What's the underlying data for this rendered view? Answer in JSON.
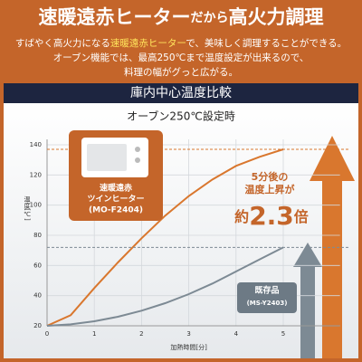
{
  "header": {
    "title_parts": [
      "速暖遠赤ヒーター",
      "だから",
      "高火力調理"
    ],
    "line1": [
      "すばやく高火力になる",
      "速暖遠赤ヒーター",
      "で、美味しく調理することができる。"
    ],
    "line2": "オーブン機能では、最高250℃まで温度設定が出来るので、",
    "line3": "料理の幅がグっと広がる。"
  },
  "section_title": "庫内中心温度比較",
  "chart_data": {
    "type": "line",
    "subtitle": "オーブン250℃設定時",
    "x_label": "加熱時間[分]",
    "y_label": "温度[℃]",
    "x": [
      0,
      0.5,
      1,
      1.5,
      2,
      2.5,
      3,
      3.5,
      4,
      4.5,
      5
    ],
    "xlim": [
      0,
      6.2
    ],
    "xticks": [
      0,
      1,
      2,
      3,
      4,
      5
    ],
    "ylim": [
      20,
      140
    ],
    "yticks": [
      20,
      40,
      60,
      80,
      100,
      120,
      140
    ],
    "grid": true,
    "series": [
      {
        "color": "#d9772e",
        "values": [
          20,
          27,
          45,
          62,
          78,
          93,
          106,
          117,
          126,
          132,
          137
        ]
      },
      {
        "color": "#7d8a94",
        "values": [
          20,
          21,
          23,
          26,
          30,
          35,
          41,
          48,
          56,
          64,
          72
        ]
      }
    ],
    "products": [
      {
        "lines": [
          "速暖遠赤",
          "ツインヒーター",
          "(MO-F2404)"
        ]
      },
      {
        "lines": [
          "既存品",
          "(MS-Y2403)"
        ]
      }
    ],
    "annotation": {
      "lines": [
        "5分後の",
        "温度上昇が"
      ],
      "ratio_parts": [
        "約",
        "2.3",
        "倍"
      ]
    }
  }
}
